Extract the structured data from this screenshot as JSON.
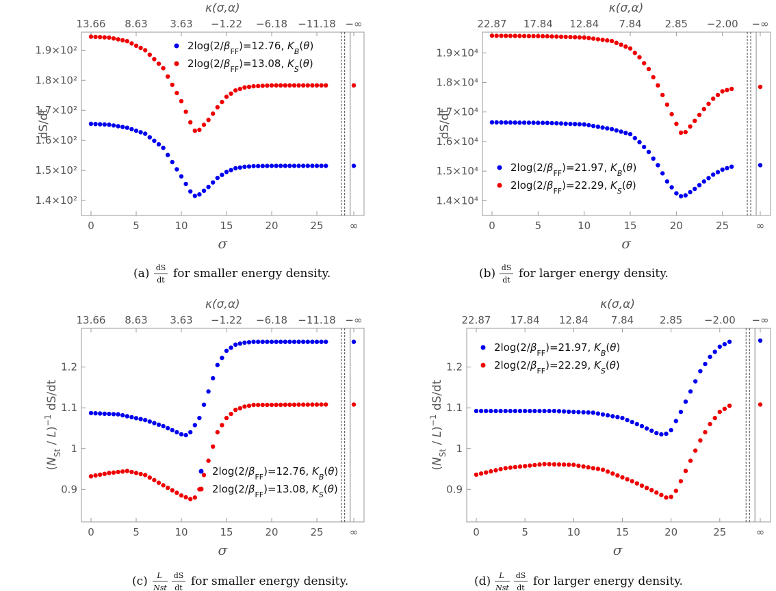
{
  "chart_data": [
    {
      "type": "scatter",
      "panel": "a",
      "caption_label": "(a)",
      "caption_frac_num": "dS",
      "caption_frac_den": "dt",
      "caption_text": "for smaller energy density.",
      "xlabel": "σ",
      "ylabel": "dS/dt",
      "top_axis_label": "κ(σ,α)",
      "top_ticks": [
        "13.66",
        "8.63",
        "3.63",
        "−1.22",
        "−6.18",
        "−11.18",
        "−∞"
      ],
      "x_ticks": [
        "0",
        "5",
        "10",
        "15",
        "20",
        "25",
        "∞"
      ],
      "y_ticks": [
        "1.4×10²",
        "1.5×10²",
        "1.6×10²",
        "1.7×10²",
        "1.8×10²",
        "1.9×10²"
      ],
      "ylim": [
        135,
        196
      ],
      "y_tick_values": [
        140,
        150,
        160,
        170,
        180,
        190
      ],
      "legend_position": "top-right",
      "series": [
        {
          "name": "2log(2/βFF)=12.76, K_B(θ)",
          "color": "#0000ee",
          "knots": [
            [
              0,
              165.5
            ],
            [
              2,
              165.2
            ],
            [
              4,
              164.2
            ],
            [
              6,
              162.2
            ],
            [
              8,
              157.5
            ],
            [
              10,
              148
            ],
            [
              11,
              143
            ],
            [
              11.5,
              141.5
            ],
            [
              12,
              142
            ],
            [
              13,
              144.5
            ],
            [
              14,
              147.5
            ],
            [
              15,
              149.5
            ],
            [
              16,
              150.7
            ],
            [
              17,
              151.2
            ],
            [
              18,
              151.4
            ],
            [
              20,
              151.5
            ],
            [
              26,
              151.5
            ]
          ],
          "infinity_value": 151.5
        },
        {
          "name": "2log(2/βFF)=13.08, K_S(θ)",
          "color": "#ee0000",
          "knots": [
            [
              0,
              194.5
            ],
            [
              2,
              194.2
            ],
            [
              4,
              193
            ],
            [
              6,
              190
            ],
            [
              8,
              184
            ],
            [
              10,
              173
            ],
            [
              11,
              166
            ],
            [
              11.5,
              163.2
            ],
            [
              12,
              163.5
            ],
            [
              13,
              166.8
            ],
            [
              14,
              171
            ],
            [
              15,
              174.5
            ],
            [
              16,
              176.6
            ],
            [
              17,
              177.6
            ],
            [
              18,
              178
            ],
            [
              20,
              178.3
            ],
            [
              26,
              178.3
            ]
          ],
          "infinity_value": 178.3
        }
      ]
    },
    {
      "type": "scatter",
      "panel": "b",
      "caption_label": "(b)",
      "caption_frac_num": "dS",
      "caption_frac_den": "dt",
      "caption_text": "for larger energy density.",
      "xlabel": "σ",
      "ylabel": "dS/dt",
      "top_axis_label": "κ(σ,α)",
      "top_ticks": [
        "22.87",
        "17.84",
        "12.84",
        "7.84",
        "2.85",
        "−2.00",
        "−∞"
      ],
      "x_ticks": [
        "0",
        "5",
        "10",
        "15",
        "20",
        "25",
        "∞"
      ],
      "y_ticks": [
        "1.4×10⁴",
        "1.5×10⁴",
        "1.6×10⁴",
        "1.7×10⁴",
        "1.8×10⁴",
        "1.9×10⁴"
      ],
      "ylim": [
        13500,
        19700
      ],
      "y_tick_values": [
        14000,
        15000,
        16000,
        17000,
        18000,
        19000
      ],
      "legend_position": "bottom-right",
      "series": [
        {
          "name": "2log(2/βFF)=21.97, K_B(θ)",
          "color": "#0000ee",
          "knots": [
            [
              0,
              16650
            ],
            [
              6,
              16630
            ],
            [
              10,
              16580
            ],
            [
              13,
              16420
            ],
            [
              15,
              16250
            ],
            [
              16,
              15980
            ],
            [
              17,
              15650
            ],
            [
              18,
              15200
            ],
            [
              19,
              14650
            ],
            [
              20,
              14250
            ],
            [
              20.5,
              14150
            ],
            [
              21,
              14180
            ],
            [
              22,
              14400
            ],
            [
              23,
              14650
            ],
            [
              24,
              14880
            ],
            [
              25,
              15050
            ],
            [
              26,
              15150
            ]
          ],
          "infinity_value": 15200
        },
        {
          "name": "2log(2/βFF)=22.29, K_S(θ)",
          "color": "#ee0000",
          "knots": [
            [
              0,
              19580
            ],
            [
              6,
              19560
            ],
            [
              10,
              19520
            ],
            [
              13,
              19400
            ],
            [
              15,
              19150
            ],
            [
              16,
              18850
            ],
            [
              17,
              18450
            ],
            [
              18,
              17900
            ],
            [
              19,
              17250
            ],
            [
              20,
              16600
            ],
            [
              20.5,
              16300
            ],
            [
              21,
              16320
            ],
            [
              22,
              16700
            ],
            [
              23,
              17100
            ],
            [
              24,
              17450
            ],
            [
              25,
              17700
            ],
            [
              26,
              17780
            ]
          ],
          "infinity_value": 17850
        }
      ]
    },
    {
      "type": "scatter",
      "panel": "c",
      "caption_label": "(c)",
      "caption_frac_num": "dS",
      "caption_frac_den": "dt",
      "caption_pre_num": "L",
      "caption_pre_den": "Nst",
      "caption_text": "for smaller energy density.",
      "xlabel": "σ",
      "ylabel": "(N_St / L)⁻¹ dS/dt",
      "top_axis_label": "κ(σ,α)",
      "top_ticks": [
        "13.66",
        "8.63",
        "3.63",
        "−1.22",
        "−6.18",
        "−11.18",
        "−∞"
      ],
      "x_ticks": [
        "0",
        "5",
        "10",
        "15",
        "20",
        "25",
        "∞"
      ],
      "y_ticks": [
        "0.9",
        "1",
        "1.1",
        "1.2"
      ],
      "ylim": [
        0.82,
        1.295
      ],
      "y_tick_values": [
        0.9,
        1.0,
        1.1,
        1.2
      ],
      "legend_position": "bottom-right",
      "series": [
        {
          "name": "2log(2/βFF)=12.76, K_B(θ)",
          "color": "#0000ee",
          "knots": [
            [
              0,
              1.087
            ],
            [
              3,
              1.084
            ],
            [
              6,
              1.07
            ],
            [
              8,
              1.055
            ],
            [
              10,
              1.035
            ],
            [
              10.5,
              1.033
            ],
            [
              11,
              1.04
            ],
            [
              12,
              1.075
            ],
            [
              13,
              1.14
            ],
            [
              14,
              1.205
            ],
            [
              15,
              1.24
            ],
            [
              16,
              1.255
            ],
            [
              17,
              1.26
            ],
            [
              18,
              1.262
            ],
            [
              26,
              1.262
            ]
          ],
          "infinity_value": 1.262
        },
        {
          "name": "2log(2/βFF)=13.08, K_S(θ)",
          "color": "#ee0000",
          "knots": [
            [
              0,
              0.932
            ],
            [
              2,
              0.94
            ],
            [
              4,
              0.945
            ],
            [
              6,
              0.935
            ],
            [
              8,
              0.91
            ],
            [
              10,
              0.885
            ],
            [
              11,
              0.876
            ],
            [
              11.5,
              0.88
            ],
            [
              12,
              0.9
            ],
            [
              13,
              0.97
            ],
            [
              14,
              1.04
            ],
            [
              15,
              1.075
            ],
            [
              16,
              1.095
            ],
            [
              17,
              1.103
            ],
            [
              18,
              1.107
            ],
            [
              26,
              1.108
            ]
          ],
          "infinity_value": 1.108
        }
      ]
    },
    {
      "type": "scatter",
      "panel": "d",
      "caption_label": "(d)",
      "caption_frac_num": "dS",
      "caption_frac_den": "dt",
      "caption_pre_num": "L",
      "caption_pre_den": "Nst",
      "caption_text": "for larger energy density.",
      "xlabel": "σ",
      "ylabel": "(N_St / L)⁻¹ dS/dt",
      "top_axis_label": "κ(σ,α)",
      "top_ticks": [
        "22.87",
        "17.84",
        "12.84",
        "7.84",
        "2.85",
        "−2.00",
        "−∞"
      ],
      "x_ticks": [
        "0",
        "5",
        "10",
        "15",
        "20",
        "25",
        "∞"
      ],
      "y_ticks": [
        "0.9",
        "1",
        "1.1",
        "1.2"
      ],
      "ylim": [
        0.82,
        1.295
      ],
      "y_tick_values": [
        0.9,
        1.0,
        1.1,
        1.2
      ],
      "legend_position": "top-left",
      "series": [
        {
          "name": "2log(2/βFF)=21.97, K_B(θ)",
          "color": "#0000ee",
          "knots": [
            [
              0,
              1.092
            ],
            [
              8,
              1.092
            ],
            [
              12,
              1.088
            ],
            [
              15,
              1.075
            ],
            [
              17,
              1.055
            ],
            [
              18.5,
              1.038
            ],
            [
              19.3,
              1.033
            ],
            [
              20,
              1.045
            ],
            [
              21,
              1.09
            ],
            [
              22,
              1.14
            ],
            [
              23,
              1.19
            ],
            [
              24,
              1.225
            ],
            [
              25,
              1.25
            ],
            [
              26,
              1.262
            ]
          ],
          "infinity_value": 1.265
        },
        {
          "name": "2log(2/βFF)=22.29, K_S(θ)",
          "color": "#ee0000",
          "knots": [
            [
              0,
              0.936
            ],
            [
              3,
              0.952
            ],
            [
              7,
              0.962
            ],
            [
              10,
              0.96
            ],
            [
              13,
              0.948
            ],
            [
              16,
              0.92
            ],
            [
              18,
              0.898
            ],
            [
              19.5,
              0.88
            ],
            [
              20.2,
              0.882
            ],
            [
              21,
              0.92
            ],
            [
              22,
              0.97
            ],
            [
              23,
              1.02
            ],
            [
              24,
              1.06
            ],
            [
              25,
              1.09
            ],
            [
              26,
              1.105
            ]
          ],
          "infinity_value": 1.108
        }
      ]
    }
  ]
}
